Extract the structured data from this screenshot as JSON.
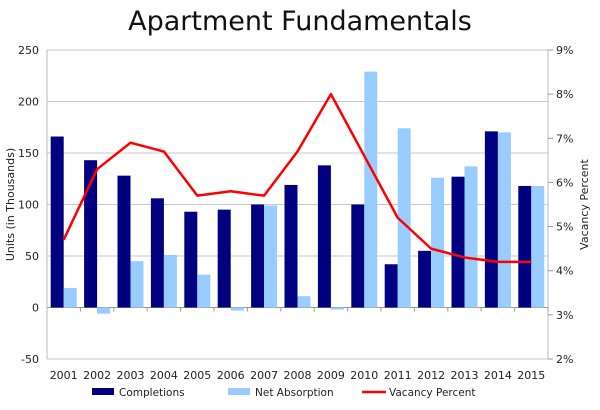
{
  "chart_data": {
    "type": "bar",
    "title": "Apartment Fundamentals",
    "ylabel": "Units (in Thousands)",
    "y2label": "Vacancy Percent",
    "categories": [
      "2001",
      "2002",
      "2003",
      "2004",
      "2005",
      "2006",
      "2007",
      "2008",
      "2009",
      "2010",
      "2011",
      "2012",
      "2013",
      "2014",
      "2015"
    ],
    "ylim": [
      -50,
      250
    ],
    "yticks": [
      -50,
      0,
      50,
      100,
      150,
      200,
      250
    ],
    "y2lim": [
      2,
      9
    ],
    "y2ticks": [
      "2%",
      "3%",
      "4%",
      "5%",
      "6%",
      "7%",
      "8%",
      "9%"
    ],
    "grid": true,
    "legend_position": "bottom",
    "series": [
      {
        "name": "Completions",
        "type": "bar",
        "axis": "left",
        "color": "#000080",
        "values": [
          166,
          143,
          128,
          106,
          93,
          95,
          100,
          119,
          138,
          100,
          42,
          55,
          127,
          171,
          118
        ]
      },
      {
        "name": "Net Absorption",
        "type": "bar",
        "axis": "left",
        "color": "#99ccff",
        "values": [
          19,
          -6,
          45,
          51,
          32,
          -3,
          99,
          11,
          -2,
          229,
          174,
          126,
          137,
          170,
          118
        ]
      },
      {
        "name": "Vacancy Percent",
        "type": "line",
        "axis": "right",
        "color": "#ff0000",
        "values": [
          4.7,
          6.3,
          6.9,
          6.7,
          5.7,
          5.8,
          5.7,
          6.7,
          8.0,
          6.6,
          5.2,
          4.5,
          4.3,
          4.2,
          4.2
        ]
      }
    ]
  }
}
